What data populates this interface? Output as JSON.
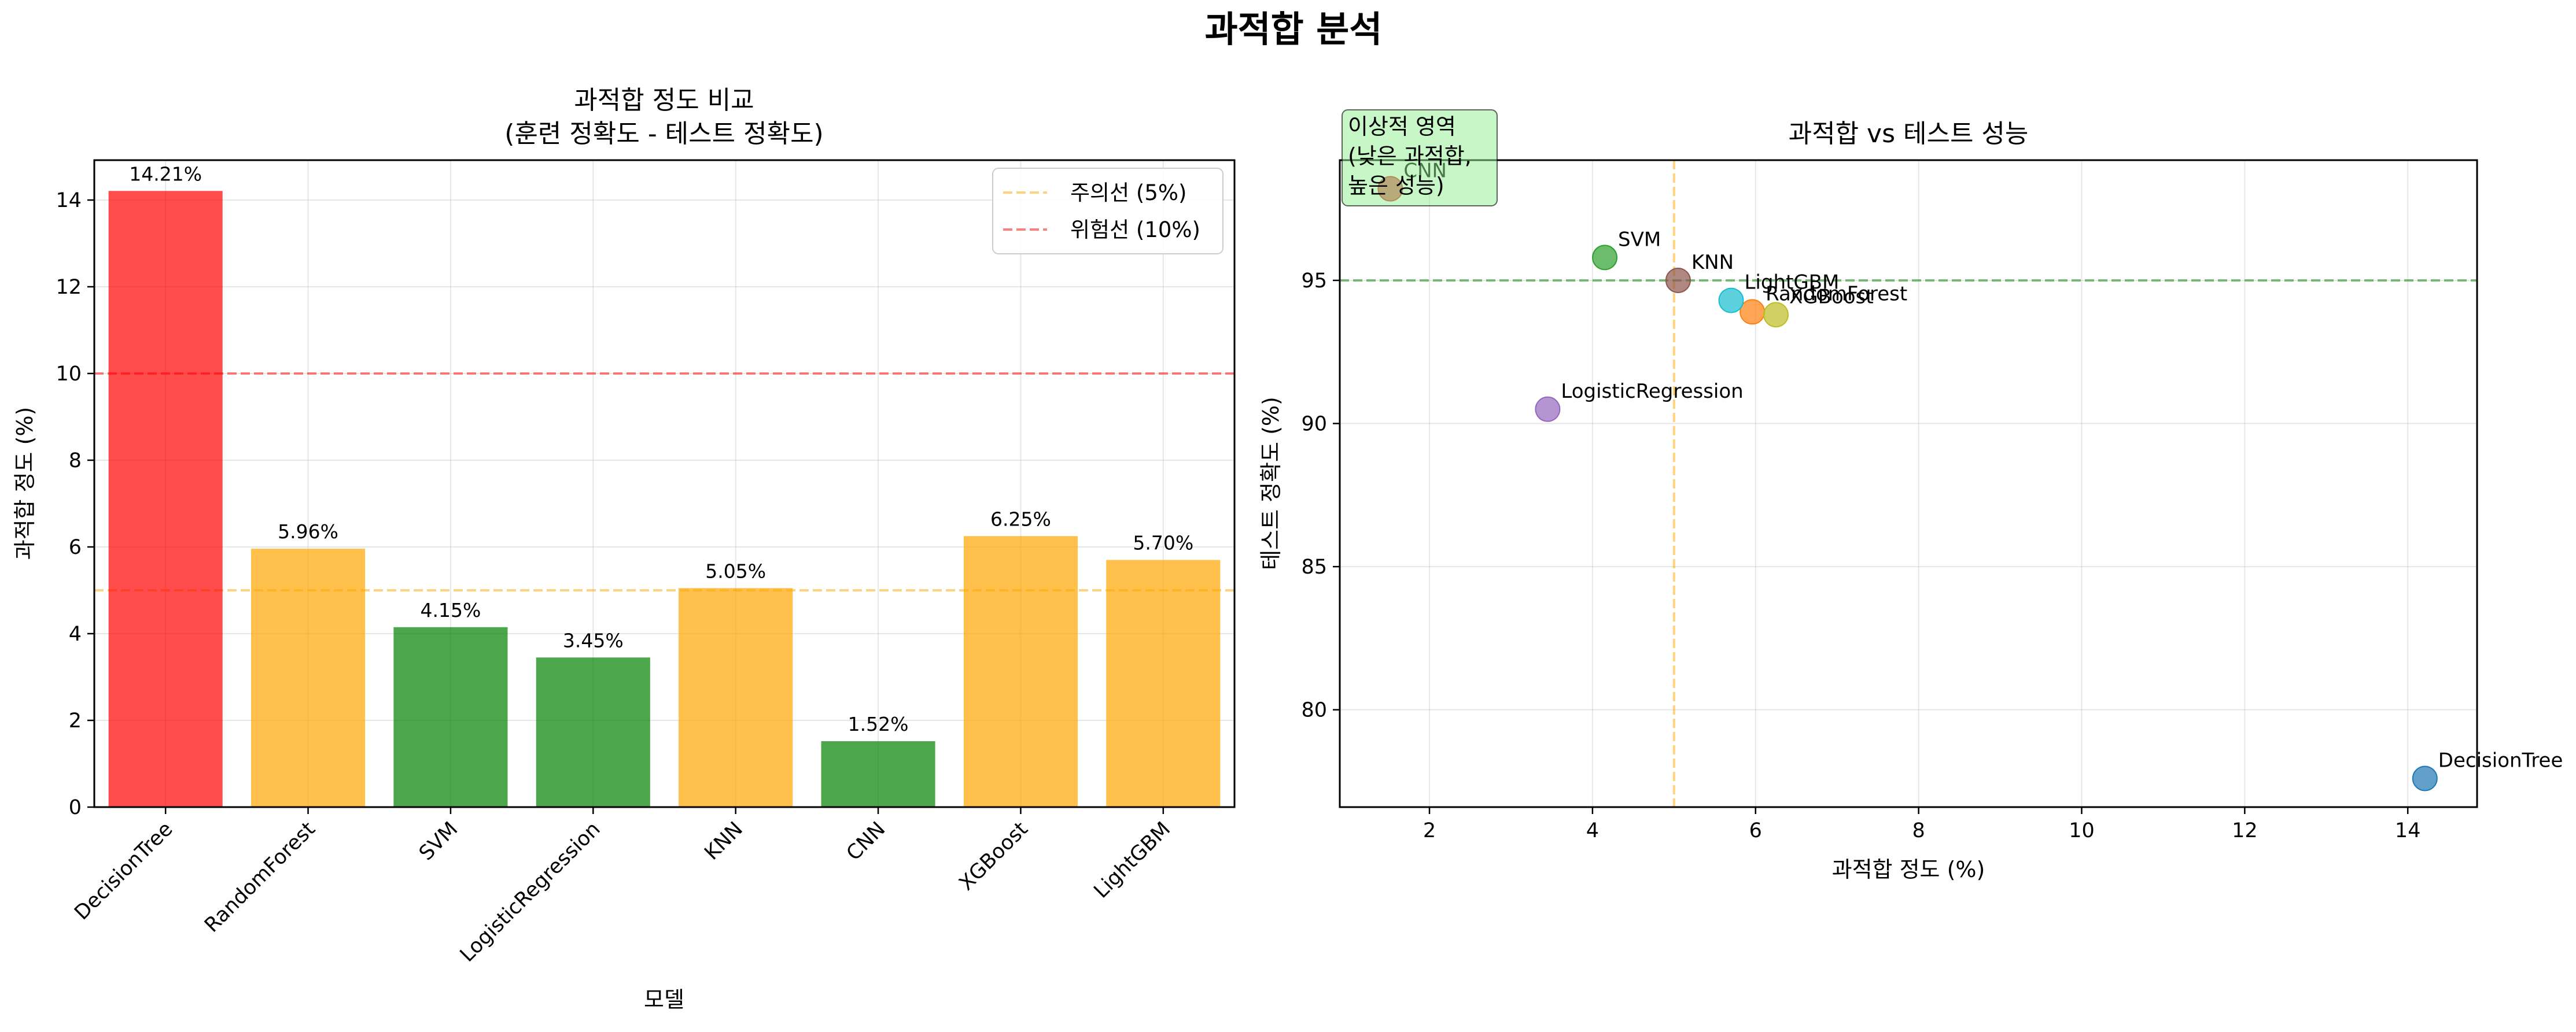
{
  "figure": {
    "suptitle": "과적합 분석"
  },
  "chart_data": [
    {
      "type": "bar",
      "title_line1": "과적합 정도 비교",
      "title_line2": "(훈련 정확도 - 테스트 정확도)",
      "xlabel": "모델",
      "ylabel": "과적합 정도 (%)",
      "categories": [
        "DecisionTree",
        "RandomForest",
        "SVM",
        "LogisticRegression",
        "KNN",
        "CNN",
        "XGBoost",
        "LightGBM"
      ],
      "values": [
        14.21,
        5.96,
        4.15,
        3.45,
        5.05,
        1.52,
        6.25,
        5.7
      ],
      "data_labels": [
        "14.21%",
        "5.96%",
        "4.15%",
        "3.45%",
        "5.05%",
        "1.52%",
        "6.25%",
        "5.70%"
      ],
      "bar_colors": [
        "#ff0000",
        "#ffa500",
        "#008000",
        "#008000",
        "#ffa500",
        "#008000",
        "#ffa500",
        "#ffa500"
      ],
      "ylim": [
        0,
        14.92
      ],
      "yticks": [
        0,
        2,
        4,
        6,
        8,
        10,
        12,
        14
      ],
      "grid": true,
      "reference_lines": [
        {
          "label": "주의선 (5%)",
          "y": 5,
          "color": "#ffa500"
        },
        {
          "label": "위험선 (10%)",
          "y": 10,
          "color": "#ff0000"
        }
      ],
      "legend_position": "top-right"
    },
    {
      "type": "scatter",
      "title": "과적합 vs 테스트 성능",
      "xlabel": "과적합 정도 (%)",
      "ylabel": "테스트 정확도 (%)",
      "xlim": [
        0.9,
        14.85
      ],
      "ylim": [
        76.6,
        99.2
      ],
      "xticks": [
        2,
        4,
        6,
        8,
        10,
        12,
        14
      ],
      "yticks": [
        80,
        85,
        90,
        95
      ],
      "grid": true,
      "points": [
        {
          "name": "DecisionTree",
          "x": 14.21,
          "y": 77.6,
          "color": "#1f77b4"
        },
        {
          "name": "RandomForest",
          "x": 5.96,
          "y": 93.9,
          "color": "#ff7f0e"
        },
        {
          "name": "SVM",
          "x": 4.15,
          "y": 95.8,
          "color": "#2ca02c"
        },
        {
          "name": "CNN",
          "x": 1.52,
          "y": 98.2,
          "color": "#d62728"
        },
        {
          "name": "LogisticRegression",
          "x": 3.45,
          "y": 90.5,
          "color": "#9467bd"
        },
        {
          "name": "KNN",
          "x": 5.05,
          "y": 95.0,
          "color": "#8c564b"
        },
        {
          "name": "XGBoost",
          "x": 6.25,
          "y": 93.8,
          "color": "#bcbd22"
        },
        {
          "name": "LightGBM",
          "x": 5.7,
          "y": 94.3,
          "color": "#17becf"
        }
      ],
      "reference_lines": [
        {
          "axis": "x",
          "value": 5,
          "color": "#ffa500"
        },
        {
          "axis": "y",
          "value": 95,
          "color": "#008000"
        }
      ],
      "annotation": {
        "lines": [
          "이상적 영역",
          "(낮은 과적합,",
          "높은 성능)"
        ],
        "color": "#90ee90"
      }
    }
  ]
}
